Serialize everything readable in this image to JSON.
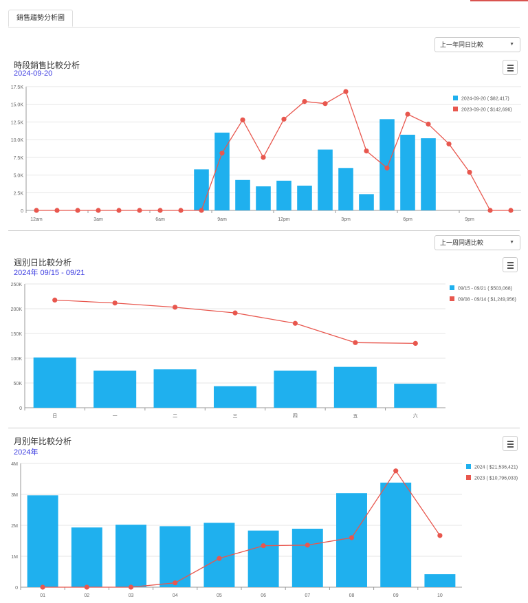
{
  "tab": {
    "label": "銷售趨勢分析圖"
  },
  "colors": {
    "current": "#1fb0ee",
    "previous": "#e8574e",
    "grid": "#e6e6e6",
    "axis": "#999999"
  },
  "hourly": {
    "select_value": "上一年同日比較",
    "title": "時段銷售比較分析",
    "subtitle": "2024-09-20",
    "legend": [
      "2024-09-20 ( $82,417)",
      "2023-09-20 ( $142,696)"
    ]
  },
  "weekly": {
    "select_value": "上一周同週比較",
    "title": "週別日比較分析",
    "subtitle": "2024年 09/15 - 09/21",
    "legend": [
      "09/15 - 09/21 ( $503,068)",
      "09/08 - 09/14 ( $1,249,956)"
    ]
  },
  "monthly": {
    "title": "月別年比較分析",
    "subtitle": "2024年",
    "legend": [
      "2024 ( $21,536,421)",
      "2023 ( $10,796,033)"
    ]
  },
  "chart_data": [
    {
      "type": "bar",
      "combo": "bar+line",
      "categories": [
        "0",
        "1",
        "2",
        "3",
        "4",
        "5",
        "6",
        "7",
        "8",
        "9",
        "10",
        "11",
        "12",
        "13",
        "14",
        "15",
        "16",
        "17",
        "18",
        "19",
        "20",
        "21",
        "22",
        "23"
      ],
      "x_tick_labels": [
        "12am",
        "3am",
        "6am",
        "9am",
        "12pm",
        "3pm",
        "6pm",
        "9pm"
      ],
      "y_tick_labels": [
        "0",
        "2.5K",
        "5.0K",
        "7.5K",
        "10.0K",
        "12.5K",
        "15.0K",
        "17.5K"
      ],
      "ylim": [
        0,
        17500
      ],
      "grid": true,
      "legend_position": "right",
      "series": [
        {
          "name": "2024-09-20 ( $82,417)",
          "type": "bar",
          "values": [
            null,
            null,
            null,
            null,
            null,
            null,
            null,
            null,
            5800,
            11000,
            4300,
            3400,
            4200,
            3500,
            8600,
            6000,
            2300,
            12900,
            10700,
            10200,
            null,
            null,
            null,
            null
          ]
        },
        {
          "name": "2023-09-20 ( $142,696)",
          "type": "line",
          "values": [
            0,
            0,
            0,
            0,
            0,
            0,
            0,
            0,
            0,
            8100,
            12800,
            7500,
            12900,
            15400,
            15100,
            16800,
            8400,
            6000,
            13600,
            12200,
            9400,
            5400,
            0,
            0
          ]
        }
      ]
    },
    {
      "type": "bar",
      "combo": "bar+line",
      "categories": [
        "日",
        "一",
        "二",
        "三",
        "四",
        "五",
        "六"
      ],
      "y_tick_labels": [
        "0",
        "50K",
        "100K",
        "150K",
        "200K",
        "250K"
      ],
      "ylim": [
        0,
        250000
      ],
      "grid": true,
      "legend_position": "right",
      "series": [
        {
          "name": "09/15 - 09/21 ( $503,068)",
          "type": "bar",
          "values": [
            101500,
            75000,
            77500,
            43500,
            75000,
            82500,
            48500
          ]
        },
        {
          "name": "09/08 - 09/14 ( $1,249,956)",
          "type": "line",
          "values": [
            217500,
            211500,
            203000,
            191500,
            170500,
            131500,
            130000
          ]
        }
      ]
    },
    {
      "type": "bar",
      "combo": "bar+line",
      "categories": [
        "01",
        "02",
        "03",
        "04",
        "05",
        "06",
        "07",
        "08",
        "09",
        "10"
      ],
      "y_tick_labels": [
        "0",
        "1M",
        "2M",
        "3M",
        "4M"
      ],
      "ylim": [
        0,
        4000000
      ],
      "grid": true,
      "legend_position": "right",
      "series": [
        {
          "name": "2024 ( $21,536,421)",
          "type": "bar",
          "values": [
            2970000,
            1930000,
            2020000,
            1970000,
            2080000,
            1830000,
            1890000,
            3040000,
            3380000,
            420000
          ]
        },
        {
          "name": "2023 ( $10,796,033)",
          "type": "line",
          "values": [
            0,
            0,
            0,
            140000,
            930000,
            1340000,
            1360000,
            1600000,
            3760000,
            1670000
          ]
        }
      ]
    }
  ]
}
